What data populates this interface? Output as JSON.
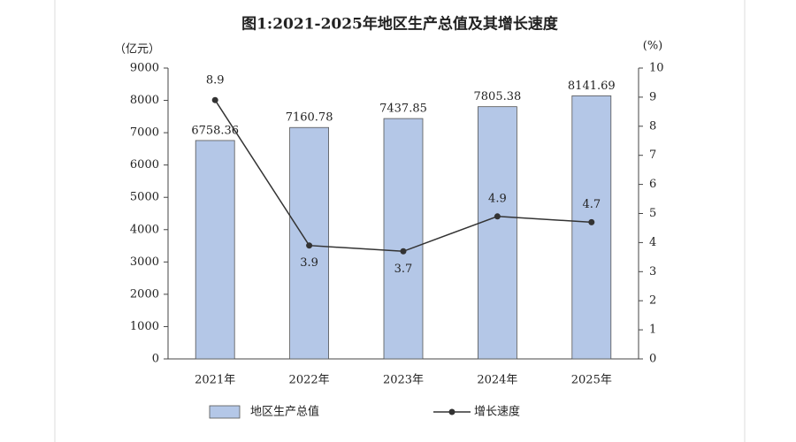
{
  "chart_data": {
    "type": "bar",
    "title": "图1:2021-2025年地区生产总值及其增长速度",
    "y_label": "（亿元）",
    "y2_label": "(%)",
    "categories": [
      "2021年",
      "2022年",
      "2023年",
      "2024年",
      "2025年"
    ],
    "series": [
      {
        "name": "地区生产总值",
        "type": "bar",
        "color": "#b4c7e7",
        "values": [
          6758.36,
          7160.78,
          7437.85,
          7805.38,
          8141.69
        ]
      },
      {
        "name": "增长速度",
        "type": "line",
        "axis": "y2",
        "color": "#333333",
        "values": [
          8.9,
          3.9,
          3.7,
          4.9,
          4.7
        ]
      }
    ],
    "ylim": [
      0,
      9000
    ],
    "yticks": [
      0,
      1000,
      2000,
      3000,
      4000,
      5000,
      6000,
      7000,
      8000,
      9000
    ],
    "y2lim": [
      0,
      10
    ],
    "y2ticks": [
      0,
      1,
      2,
      3,
      4,
      5,
      6,
      7,
      8,
      9,
      10
    ],
    "legend": "bottom"
  }
}
